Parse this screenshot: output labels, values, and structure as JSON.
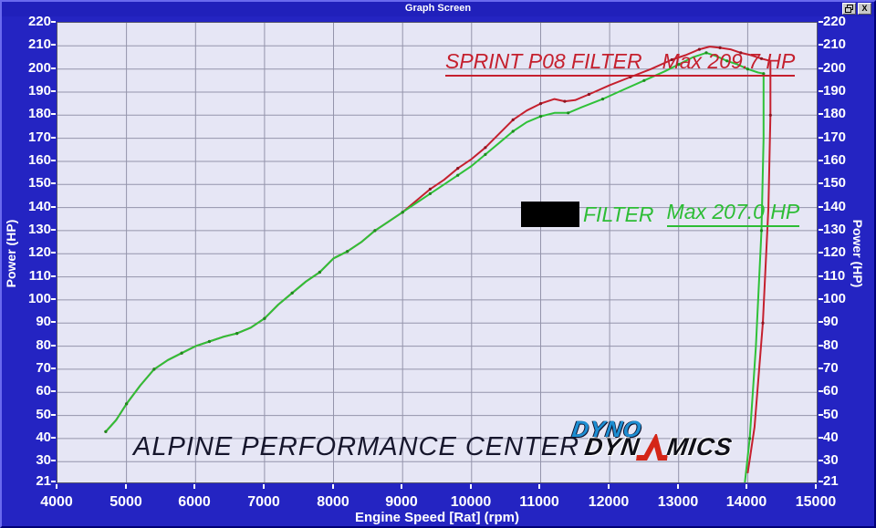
{
  "window": {
    "title": "Graph Screen",
    "restore_button": "",
    "close_button": "X"
  },
  "axes": {
    "y_left_label": "Power (HP)",
    "y_right_label": "Power (HP)",
    "x_label": "Engine Speed [Rat] (rpm)"
  },
  "legend": {
    "series1": {
      "name": "SPRINT P08 FILTER",
      "max": "Max 209.7 HP",
      "color": "#c5202e"
    },
    "series2": {
      "label": "FILTER",
      "max": "Max 207.0 HP",
      "color": "#2dbd35",
      "name_redacted": true
    }
  },
  "watermark": "ALPINE PERFORMANCE CENTER",
  "logo": {
    "line1": "DYNO",
    "line2_left": "DYN",
    "line2_right": "MICS"
  },
  "chart_data": {
    "type": "line",
    "title": "",
    "xlabel": "Engine Speed [Rat] (rpm)",
    "ylabel": "Power (HP)",
    "xlim": [
      4000,
      15000
    ],
    "ylim": [
      21,
      220
    ],
    "x_ticks": [
      4000,
      5000,
      6000,
      7000,
      8000,
      9000,
      10000,
      11000,
      12000,
      13000,
      14000,
      15000
    ],
    "y_ticks": [
      220,
      210,
      200,
      190,
      180,
      170,
      160,
      150,
      140,
      130,
      120,
      110,
      100,
      90,
      80,
      70,
      60,
      50,
      40,
      30,
      21
    ],
    "grid": true,
    "legend_position": "inside-top",
    "series": [
      {
        "name": "SPRINT P08 FILTER",
        "max_hp": 209.7,
        "color": "#c5202e",
        "marker_color": "#8d1420",
        "points": [
          [
            4700,
            43
          ],
          [
            4850,
            48
          ],
          [
            5000,
            55
          ],
          [
            5200,
            63
          ],
          [
            5400,
            70
          ],
          [
            5600,
            74
          ],
          [
            5800,
            77
          ],
          [
            6000,
            80
          ],
          [
            6200,
            82
          ],
          [
            6400,
            84
          ],
          [
            6600,
            85.5
          ],
          [
            6800,
            88
          ],
          [
            7000,
            92
          ],
          [
            7200,
            98
          ],
          [
            7400,
            103
          ],
          [
            7600,
            108
          ],
          [
            7800,
            112
          ],
          [
            8000,
            118
          ],
          [
            8200,
            121
          ],
          [
            8400,
            125
          ],
          [
            8600,
            130
          ],
          [
            8800,
            134
          ],
          [
            9000,
            138
          ],
          [
            9200,
            143
          ],
          [
            9400,
            148
          ],
          [
            9600,
            152
          ],
          [
            9800,
            157
          ],
          [
            10000,
            161
          ],
          [
            10200,
            166
          ],
          [
            10400,
            172
          ],
          [
            10600,
            178
          ],
          [
            10800,
            182
          ],
          [
            11000,
            185
          ],
          [
            11200,
            187
          ],
          [
            11350,
            186
          ],
          [
            11500,
            186.5
          ],
          [
            11700,
            189
          ],
          [
            12000,
            193
          ],
          [
            12300,
            196.5
          ],
          [
            12600,
            200
          ],
          [
            12900,
            204
          ],
          [
            13100,
            206
          ],
          [
            13300,
            208.5
          ],
          [
            13450,
            209.7
          ],
          [
            13600,
            209.2
          ],
          [
            13750,
            208.5
          ],
          [
            13900,
            207
          ],
          [
            14050,
            206
          ],
          [
            14200,
            204.5
          ],
          [
            14330,
            203.5
          ],
          [
            14330,
            180
          ],
          [
            14300,
            140
          ],
          [
            14220,
            90
          ],
          [
            14100,
            45
          ],
          [
            14000,
            25
          ]
        ]
      },
      {
        "name": "FILTER (name redacted)",
        "max_hp": 207.0,
        "color": "#2fc138",
        "marker_color": "#1d8a1d",
        "points": [
          [
            4700,
            43
          ],
          [
            4850,
            48
          ],
          [
            5000,
            55
          ],
          [
            5200,
            63
          ],
          [
            5400,
            70
          ],
          [
            5600,
            74
          ],
          [
            5800,
            77
          ],
          [
            6000,
            80
          ],
          [
            6200,
            82
          ],
          [
            6400,
            84
          ],
          [
            6600,
            85.5
          ],
          [
            6800,
            88
          ],
          [
            7000,
            92
          ],
          [
            7200,
            98
          ],
          [
            7400,
            103
          ],
          [
            7600,
            108
          ],
          [
            7800,
            112
          ],
          [
            8000,
            118
          ],
          [
            8200,
            121
          ],
          [
            8400,
            125
          ],
          [
            8600,
            130
          ],
          [
            8800,
            134
          ],
          [
            9000,
            138
          ],
          [
            9200,
            142
          ],
          [
            9400,
            146
          ],
          [
            9600,
            150
          ],
          [
            9800,
            154
          ],
          [
            10000,
            158
          ],
          [
            10200,
            163
          ],
          [
            10400,
            168
          ],
          [
            10600,
            173
          ],
          [
            10800,
            177
          ],
          [
            11000,
            179.5
          ],
          [
            11200,
            181
          ],
          [
            11400,
            181
          ],
          [
            11600,
            183.5
          ],
          [
            11900,
            187
          ],
          [
            12200,
            191
          ],
          [
            12500,
            195
          ],
          [
            12800,
            199
          ],
          [
            13000,
            202
          ],
          [
            13200,
            205
          ],
          [
            13400,
            207
          ],
          [
            13550,
            205.5
          ],
          [
            13700,
            203.5
          ],
          [
            13850,
            202
          ],
          [
            14000,
            200
          ],
          [
            14150,
            198.5
          ],
          [
            14230,
            198
          ],
          [
            14230,
            170
          ],
          [
            14200,
            130
          ],
          [
            14120,
            80
          ],
          [
            14030,
            40
          ],
          [
            13960,
            21
          ]
        ]
      }
    ]
  }
}
